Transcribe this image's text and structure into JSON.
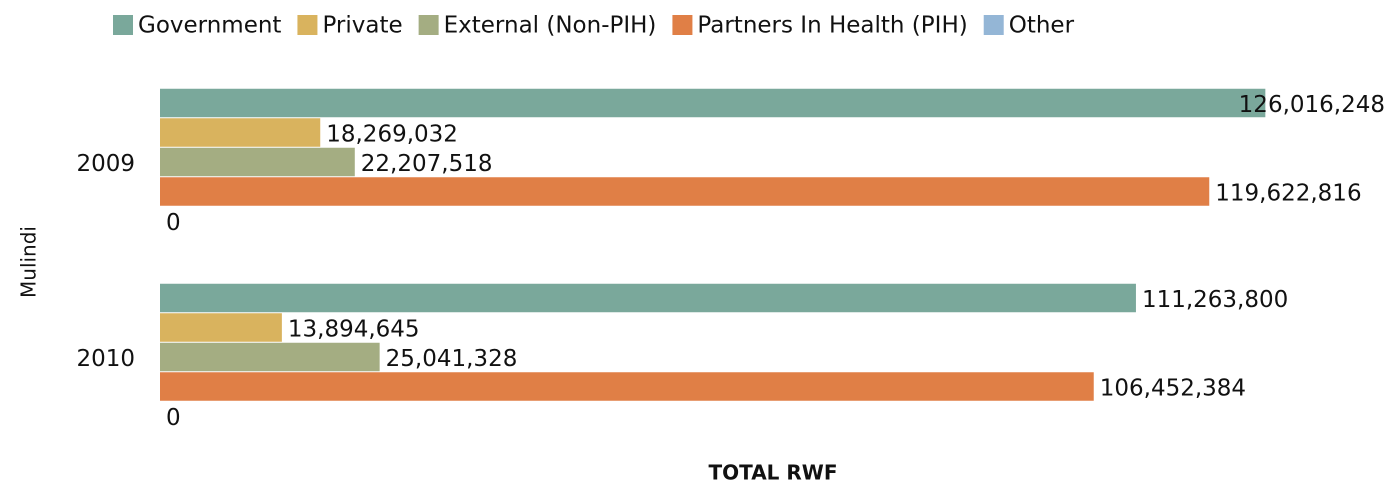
{
  "chart_data": {
    "type": "bar",
    "orientation": "horizontal",
    "categories": [
      "2009",
      "2010"
    ],
    "y_label": "Mulindi",
    "x_label": "TOTAL RWF",
    "xlim": [
      0,
      140000000
    ],
    "legend": "top",
    "series": [
      {
        "name": "Government",
        "color": "#7aa89b",
        "values": [
          126016248,
          111263800
        ],
        "value_labels": [
          "126,016,248",
          "111,263,800"
        ]
      },
      {
        "name": "Private",
        "color": "#d9b35e",
        "values": [
          18269032,
          13894645
        ],
        "value_labels": [
          "18,269,032",
          "13,894,645"
        ]
      },
      {
        "name": "External (Non-PIH)",
        "color": "#a4ad82",
        "values": [
          22207518,
          25041328
        ],
        "value_labels": [
          "22,207,518",
          "25,041,328"
        ]
      },
      {
        "name": "Partners In Health (PIH)",
        "color": "#e07f46",
        "values": [
          119622816,
          106452384
        ],
        "value_labels": [
          "119,622,816",
          "106,452,384"
        ]
      },
      {
        "name": "Other",
        "color": "#94b6d6",
        "values": [
          0,
          0
        ],
        "value_labels": [
          "0",
          "0"
        ]
      }
    ]
  }
}
